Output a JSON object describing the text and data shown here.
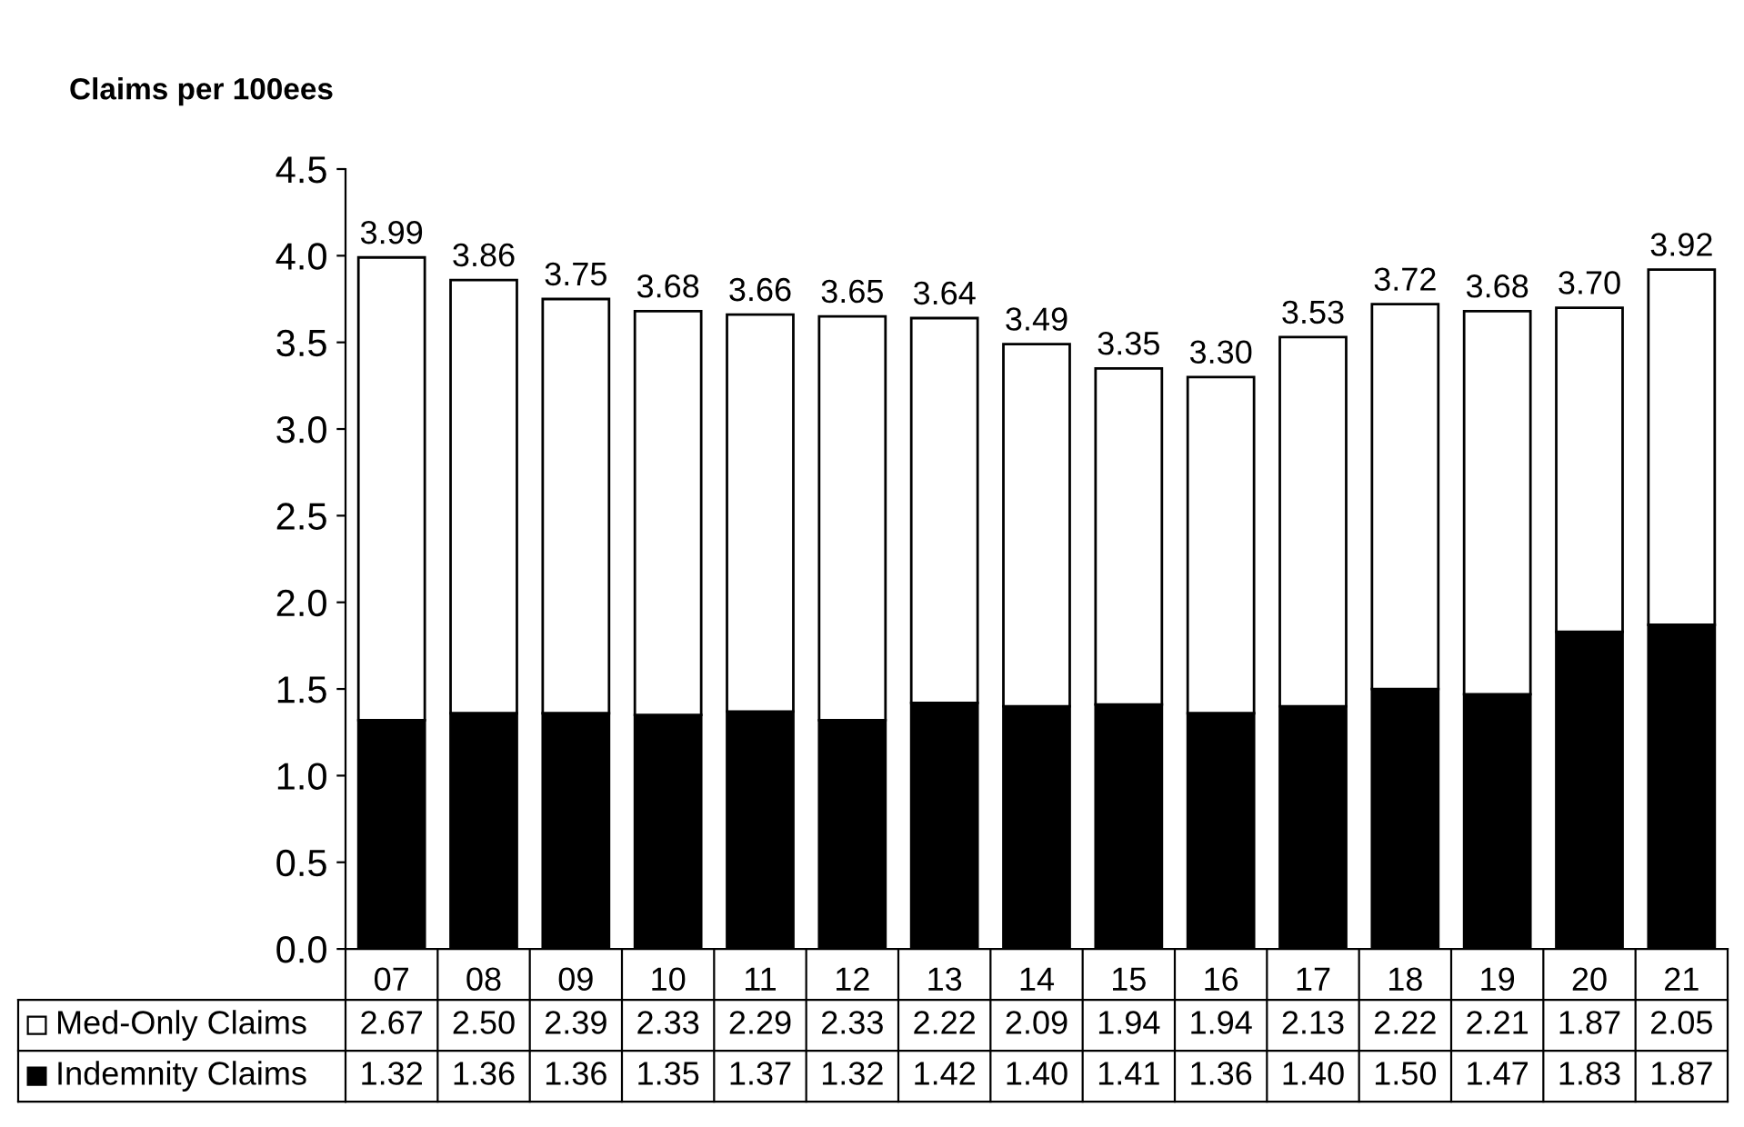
{
  "chart_data": {
    "type": "bar",
    "title": "Claims per 100ees",
    "stacked": true,
    "legend": "bottom",
    "categories": [
      "07",
      "08",
      "09",
      "10",
      "11",
      "12",
      "13",
      "14",
      "15",
      "16",
      "17",
      "18",
      "19",
      "20",
      "21"
    ],
    "series": [
      {
        "name": "Indemnity Claims",
        "color": "#000000",
        "values": [
          1.32,
          1.36,
          1.36,
          1.35,
          1.37,
          1.32,
          1.42,
          1.4,
          1.41,
          1.36,
          1.4,
          1.5,
          1.47,
          1.83,
          1.87
        ],
        "value_labels": [
          "1.32",
          "1.36",
          "1.36",
          "1.35",
          "1.37",
          "1.32",
          "1.42",
          "1.40",
          "1.41",
          "1.36",
          "1.40",
          "1.50",
          "1.47",
          "1.83",
          "1.87"
        ]
      },
      {
        "name": "Med-Only Claims",
        "color": "#ffffff",
        "values": [
          2.67,
          2.5,
          2.39,
          2.33,
          2.29,
          2.33,
          2.22,
          2.09,
          1.94,
          1.94,
          2.13,
          2.22,
          2.21,
          1.87,
          2.05
        ],
        "value_labels": [
          "2.67",
          "2.50",
          "2.39",
          "2.33",
          "2.29",
          "2.33",
          "2.22",
          "2.09",
          "1.94",
          "1.94",
          "2.13",
          "2.22",
          "2.21",
          "1.87",
          "2.05"
        ]
      }
    ],
    "totals": [
      "3.99",
      "3.86",
      "3.75",
      "3.68",
      "3.66",
      "3.65",
      "3.64",
      "3.49",
      "3.35",
      "3.30",
      "3.53",
      "3.72",
      "3.68",
      "3.70",
      "3.92"
    ],
    "ylim": [
      0,
      4.5
    ],
    "yticks": [
      {
        "value": 0,
        "label": "0.0"
      },
      {
        "value": 0.5,
        "label": "0.5"
      },
      {
        "value": 1,
        "label": "1.0"
      },
      {
        "value": 1.5,
        "label": "1.5"
      },
      {
        "value": 2,
        "label": "2.0"
      },
      {
        "value": 2.5,
        "label": "2.5"
      },
      {
        "value": 3,
        "label": "3.0"
      },
      {
        "value": 3.5,
        "label": "3.5"
      },
      {
        "value": 4,
        "label": "4.0"
      },
      {
        "value": 4.5,
        "label": "4.5"
      }
    ]
  }
}
